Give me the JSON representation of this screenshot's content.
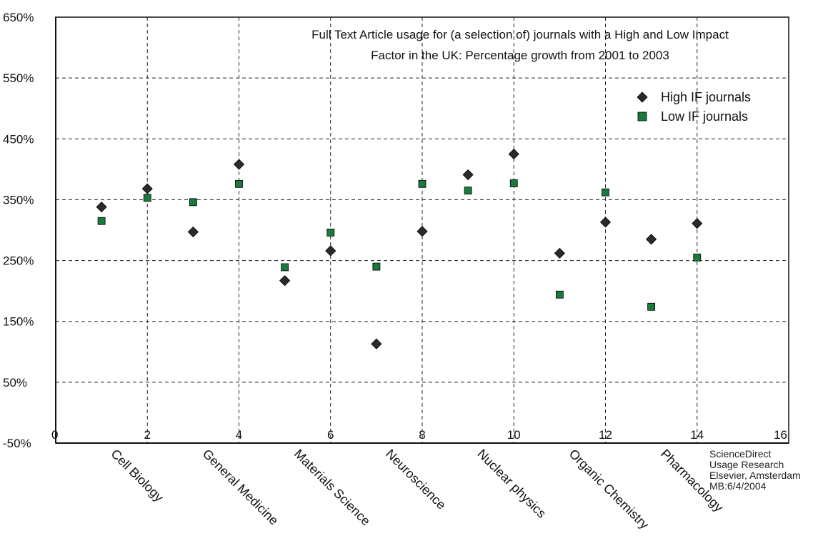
{
  "chart_data": {
    "type": "scatter",
    "title_lines": [
      "Full Text Article usage for (a selection of) journals with a High and Low Impact",
      "Factor in the UK: Percentage growth from 2001 to 2003"
    ],
    "xlim": [
      0,
      16
    ],
    "ylim": [
      -50,
      650
    ],
    "x_ticks": [
      "0",
      "2",
      "4",
      "6",
      "8",
      "10",
      "12",
      "14",
      "16"
    ],
    "y_ticks": [
      "650%",
      "550%",
      "450%",
      "350%",
      "250%",
      "150%",
      "50%",
      "-50%"
    ],
    "grid": true,
    "legend_position": "top-right",
    "categories": [
      {
        "label": "Cell Biology",
        "x": 1.5
      },
      {
        "label": "General Medicine",
        "x": 3.5
      },
      {
        "label": "Materials Science",
        "x": 5.5
      },
      {
        "label": "Neuroscience",
        "x": 7.5
      },
      {
        "label": "Nuclear physics",
        "x": 9.5
      },
      {
        "label": "Organic Chemistry",
        "x": 11.5
      },
      {
        "label": "Pharmacology",
        "x": 13.5
      }
    ],
    "series": [
      {
        "name": "High IF journals",
        "marker": "diamond",
        "color": "#2b2b2b",
        "x": [
          1,
          2,
          3,
          4,
          5,
          6,
          7,
          8,
          9,
          10,
          11,
          12,
          13,
          14
        ],
        "y": [
          338,
          368,
          297,
          408,
          217,
          266,
          113,
          298,
          391,
          425,
          262,
          313,
          285,
          311
        ]
      },
      {
        "name": "Low IF journals",
        "marker": "square",
        "color": "#1a7a3c",
        "x": [
          1,
          2,
          3,
          4,
          5,
          6,
          7,
          8,
          9,
          10,
          11,
          12,
          13,
          14
        ],
        "y": [
          315,
          353,
          346,
          376,
          239,
          296,
          240,
          376,
          365,
          377,
          194,
          362,
          174,
          255
        ]
      }
    ],
    "annotation": [
      "ScienceDirect",
      "Usage Research",
      "Elsevier, Amsterdam",
      "MB:6/4/2004"
    ]
  }
}
